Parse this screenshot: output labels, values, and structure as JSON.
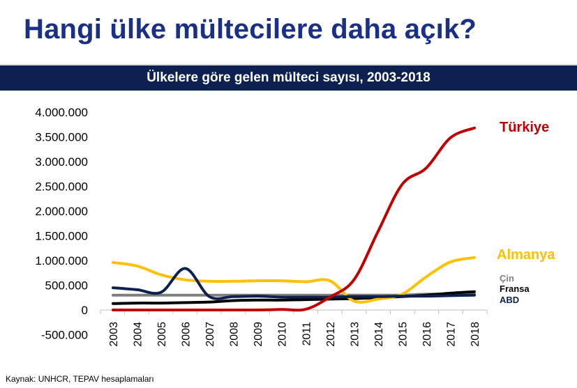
{
  "page": {
    "title": "Hangi ülke mültecilere daha açık?",
    "subtitle": "Ülkelere göre gelen mülteci sayısı, 2003-2018",
    "source": "Kaynak: UNHCR, TEPAV hesaplamaları"
  },
  "chart_data": {
    "type": "line",
    "title": "Ülkelere göre gelen mülteci sayısı, 2003-2018",
    "xlabel": "",
    "ylabel": "",
    "x": [
      "2003",
      "2004",
      "2005",
      "2006",
      "2007",
      "2008",
      "2009",
      "2010",
      "2011",
      "2012",
      "2013",
      "2014",
      "2015",
      "2016",
      "2017",
      "2018"
    ],
    "ylim": [
      -500000,
      4000000
    ],
    "yticks": [
      4000000,
      3500000,
      3000000,
      2500000,
      2000000,
      1500000,
      1000000,
      500000,
      0,
      -500000
    ],
    "ytick_labels": [
      "4.000.000",
      "3.500.000",
      "3.000.000",
      "2.500.000",
      "2.000.000",
      "1.500.000",
      "1.000.000",
      "500.000",
      "0",
      "-500.000"
    ],
    "grid": false,
    "legend": "labels at right end of lines",
    "series": [
      {
        "name": "Türkiye",
        "color": "#c00000",
        "values": [
          0,
          0,
          0,
          0,
          0,
          0,
          0,
          10000,
          15000,
          260000,
          610000,
          1590000,
          2540000,
          2870000,
          3480000,
          3680000
        ]
      },
      {
        "name": "Almanya",
        "color": "#ffc000",
        "values": [
          960000,
          890000,
          710000,
          610000,
          580000,
          580000,
          590000,
          590000,
          570000,
          590000,
          180000,
          220000,
          320000,
          670000,
          970000,
          1060000
        ]
      },
      {
        "name": "Çin",
        "color": "#7f7f7f",
        "values": [
          300000,
          300000,
          300000,
          300000,
          300000,
          300000,
          300000,
          300000,
          300000,
          300000,
          300000,
          300000,
          300000,
          320000,
          320000,
          320000
        ]
      },
      {
        "name": "Fransa",
        "color": "#000000",
        "values": [
          130000,
          140000,
          140000,
          150000,
          160000,
          190000,
          200000,
          200000,
          210000,
          220000,
          230000,
          250000,
          270000,
          300000,
          340000,
          370000
        ]
      },
      {
        "name": "ABD",
        "color": "#0d2150",
        "values": [
          450000,
          410000,
          360000,
          840000,
          270000,
          270000,
          280000,
          260000,
          260000,
          260000,
          270000,
          270000,
          280000,
          280000,
          290000,
          300000
        ]
      }
    ]
  }
}
